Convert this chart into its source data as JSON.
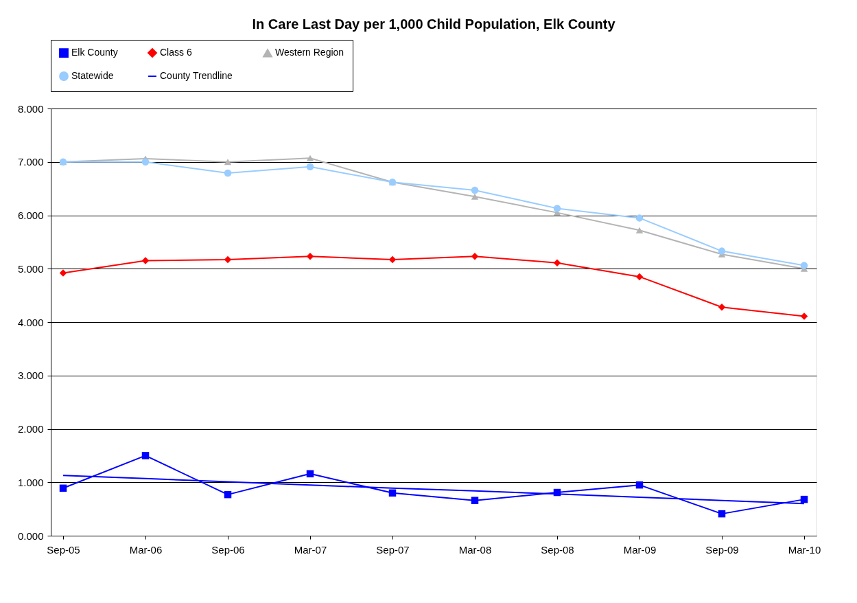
{
  "chart_data": {
    "type": "line",
    "title": "In Care Last Day per 1,000 Child Population, Elk County",
    "categories": [
      "Sep-05",
      "Mar-06",
      "Sep-06",
      "Mar-07",
      "Sep-07",
      "Mar-08",
      "Sep-08",
      "Mar-09",
      "Sep-09",
      "Mar-10"
    ],
    "series": [
      {
        "name": "Elk County",
        "color": "#0000ff",
        "marker": "square",
        "values": [
          0.89,
          1.5,
          0.77,
          1.16,
          0.8,
          0.66,
          0.81,
          0.95,
          0.41,
          0.68
        ]
      },
      {
        "name": "Class 6",
        "color": "#ff0000",
        "marker": "diamond",
        "values": [
          4.92,
          5.15,
          5.17,
          5.23,
          5.17,
          5.23,
          5.11,
          4.85,
          4.28,
          4.11
        ]
      },
      {
        "name": "Western Region",
        "color": "#b4b4b4",
        "marker": "triangle",
        "values": [
          7.0,
          7.06,
          7.0,
          7.07,
          6.62,
          6.35,
          6.05,
          5.72,
          5.27,
          5.0
        ]
      },
      {
        "name": "Statewide",
        "color": "#99ccff",
        "marker": "circle",
        "values": [
          7.0,
          7.0,
          6.79,
          6.91,
          6.62,
          6.47,
          6.13,
          5.95,
          5.33,
          5.06
        ]
      },
      {
        "name": "County Trendline",
        "type": "line",
        "color": "#0000ff",
        "marker": "none",
        "values": [
          1.13,
          1.07,
          1.01,
          0.95,
          0.89,
          0.84,
          0.78,
          0.72,
          0.66,
          0.6
        ]
      }
    ],
    "ylim": [
      0,
      8
    ],
    "yticks": [
      {
        "value": 0,
        "label": "0.000"
      },
      {
        "value": 1,
        "label": "1.000"
      },
      {
        "value": 2,
        "label": "2.000"
      },
      {
        "value": 3,
        "label": "3.000"
      },
      {
        "value": 4,
        "label": "4.000"
      },
      {
        "value": 5,
        "label": "5.000"
      },
      {
        "value": 6,
        "label": "6.000"
      },
      {
        "value": 7,
        "label": "7.000"
      },
      {
        "value": 8,
        "label": "8.000"
      }
    ],
    "grid": "y",
    "legend": "top",
    "line_style": "solid"
  }
}
